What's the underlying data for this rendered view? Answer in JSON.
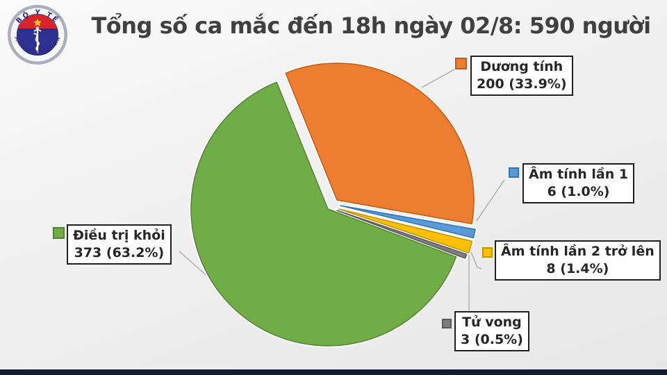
{
  "logo": {
    "top_text": "BỘ Y TẾ",
    "bottom_text": "MINISTRY OF HEALTH",
    "ring_color": "#a9afbb",
    "inner_blue": "#2e3192",
    "band_red": "#d7242b",
    "star_yellow": "#f5c518"
  },
  "header": {
    "title": "Tổng số ca mắc đến 18h ngày 02/8: 590 người"
  },
  "chart_data": {
    "type": "pie",
    "title": "Tổng số ca mắc đến 18h ngày 02/8: 590 người",
    "total": 590,
    "start_angle_deg": -22,
    "legend_position": "callout-boxes-around-pie",
    "slices": [
      {
        "label": "Dương tính",
        "value": 200,
        "percent": 33.9,
        "value_text": "200 (33.9%)",
        "color": "#ED7D31",
        "border_color": "#C55A11"
      },
      {
        "label": "Âm tính lần 1",
        "value": 6,
        "percent": 1.0,
        "value_text": "6 (1.0%)",
        "color": "#5B9BD5",
        "border_color": "#2E75B6"
      },
      {
        "label": "Âm tính lần 2 trở lên",
        "value": 8,
        "percent": 1.4,
        "value_text": "8 (1.4%)",
        "color": "#FFC000",
        "border_color": "#BF9000"
      },
      {
        "label": "Tử vong",
        "value": 3,
        "percent": 0.5,
        "value_text": "3 (0.5%)",
        "color": "#7F7F7F",
        "border_color": "#595959"
      },
      {
        "label": "Điều trị khỏi",
        "value": 373,
        "percent": 63.2,
        "value_text": "373 (63.2%)",
        "color": "#70AD47",
        "border_color": "#548235"
      }
    ]
  },
  "footer": {
    "bar_color": "#141c30"
  }
}
